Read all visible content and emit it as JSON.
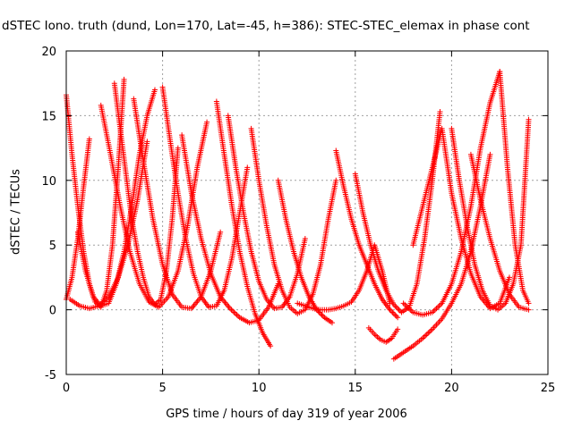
{
  "chart_data": {
    "type": "scatter",
    "title": "dSTEC Iono. truth (dund, Lon=170, Lat=-45, h=386): STEC-STEC_elemax in phase cont",
    "xlabel": "GPS time / hours of day 319 of year 2006",
    "ylabel": "dSTEC  / TECUs",
    "xlim": [
      0,
      25
    ],
    "ylim": [
      -5,
      20
    ],
    "xticks": [
      0,
      5,
      10,
      15,
      20,
      25
    ],
    "yticks": [
      -5,
      0,
      5,
      10,
      15,
      20
    ],
    "grid": true,
    "marker": "+",
    "color": "#ff0000",
    "series": [
      {
        "x": [
          0.0,
          0.3,
          0.6,
          0.9,
          1.2,
          1.5,
          1.8,
          2.1,
          2.4,
          2.7,
          3.0
        ],
        "y": [
          16.6,
          12.0,
          8.0,
          4.5,
          2.0,
          0.6,
          0.2,
          1.5,
          5.0,
          11.0,
          17.8
        ]
      },
      {
        "x": [
          0.0,
          0.3,
          0.6,
          0.9,
          1.2
        ],
        "y": [
          0.8,
          2.5,
          5.5,
          9.5,
          13.2
        ]
      },
      {
        "x": [
          0.6,
          1.0,
          1.4,
          1.8,
          2.2,
          2.6,
          3.0,
          3.4,
          3.8,
          4.2,
          4.6
        ],
        "y": [
          6.0,
          3.0,
          1.0,
          0.3,
          0.5,
          2.0,
          4.5,
          8.0,
          12.0,
          15.0,
          17.0
        ]
      },
      {
        "x": [
          2.5,
          2.8,
          3.1,
          3.4,
          3.7,
          4.0,
          4.3,
          4.6,
          4.9,
          5.2,
          5.5,
          5.8
        ],
        "y": [
          17.5,
          14.0,
          10.5,
          7.0,
          4.5,
          2.5,
          1.0,
          0.4,
          0.8,
          3.0,
          7.0,
          12.5
        ]
      },
      {
        "x": [
          0.2,
          0.7,
          1.2,
          1.7,
          2.2,
          2.7,
          3.2,
          3.7,
          4.2
        ],
        "y": [
          0.8,
          0.3,
          0.1,
          0.3,
          1.0,
          2.5,
          5.0,
          8.5,
          13.0
        ]
      },
      {
        "x": [
          1.8,
          2.3,
          2.8,
          3.3,
          3.8,
          4.3,
          4.8,
          5.3,
          5.8,
          6.3,
          6.8,
          7.3
        ],
        "y": [
          15.8,
          12.0,
          8.0,
          4.5,
          2.0,
          0.6,
          0.2,
          1.0,
          3.0,
          6.5,
          11.0,
          14.5
        ]
      },
      {
        "x": [
          3.5,
          4.0,
          4.5,
          5.0,
          5.5,
          6.0,
          6.5,
          7.0,
          7.5,
          8.0
        ],
        "y": [
          16.3,
          11.5,
          7.0,
          3.5,
          1.2,
          0.2,
          0.1,
          1.0,
          3.0,
          6.0
        ]
      },
      {
        "x": [
          5.0,
          5.4,
          5.8,
          6.2,
          6.6,
          7.0,
          7.4,
          7.8,
          8.2,
          8.6,
          9.0,
          9.4
        ],
        "y": [
          17.2,
          13.0,
          9.0,
          5.5,
          2.8,
          1.0,
          0.2,
          0.3,
          1.5,
          4.0,
          7.5,
          11.0
        ]
      },
      {
        "x": [
          6.0,
          6.5,
          7.0,
          7.5,
          8.0,
          8.5,
          9.0,
          9.5,
          10.0,
          10.5,
          11.0
        ],
        "y": [
          13.5,
          9.0,
          5.5,
          2.8,
          1.0,
          0.1,
          -0.6,
          -1.0,
          -0.8,
          0.2,
          2.0
        ]
      },
      {
        "x": [
          7.8,
          8.2,
          8.6,
          9.0,
          9.4,
          9.8,
          10.2,
          10.6
        ],
        "y": [
          16.1,
          12.0,
          8.0,
          4.5,
          1.8,
          -0.3,
          -1.8,
          -2.8
        ]
      },
      {
        "x": [
          8.4,
          8.8,
          9.2,
          9.6,
          10.0,
          10.4,
          10.8,
          11.2,
          11.6,
          12.0,
          12.4
        ],
        "y": [
          15.0,
          11.0,
          7.5,
          4.5,
          2.2,
          0.8,
          0.1,
          0.2,
          1.0,
          2.8,
          5.5
        ]
      },
      {
        "x": [
          9.6,
          10.0,
          10.4,
          10.8,
          11.2,
          11.6,
          12.0,
          12.4,
          12.8,
          13.2,
          13.6,
          14.0
        ],
        "y": [
          14.0,
          10.0,
          6.5,
          3.5,
          1.5,
          0.2,
          -0.3,
          0.0,
          1.2,
          3.5,
          7.0,
          10.0
        ]
      },
      {
        "x": [
          11.0,
          11.4,
          11.8,
          12.2,
          12.6,
          13.0,
          13.4,
          13.8
        ],
        "y": [
          10.0,
          7.0,
          4.5,
          2.5,
          1.0,
          0.0,
          -0.6,
          -1.0
        ]
      },
      {
        "x": [
          12.0,
          12.4,
          12.8,
          13.2,
          13.6,
          14.0,
          14.4,
          14.8,
          15.2,
          15.6,
          16.0,
          16.4,
          16.8
        ],
        "y": [
          0.5,
          0.3,
          0.1,
          0.0,
          0.0,
          0.1,
          0.3,
          0.6,
          1.5,
          3.0,
          5.0,
          3.0,
          0.5
        ]
      },
      {
        "x": [
          14.0,
          14.4,
          14.8,
          15.2,
          15.6,
          16.0,
          16.4,
          16.8,
          17.2
        ],
        "y": [
          12.3,
          9.5,
          7.0,
          5.0,
          3.5,
          2.0,
          0.8,
          0.0,
          -0.6
        ]
      },
      {
        "x": [
          15.0,
          15.4,
          15.8,
          16.2,
          16.6,
          17.0,
          17.4,
          17.8,
          18.2,
          18.6,
          19.0,
          19.4
        ],
        "y": [
          10.5,
          7.5,
          5.0,
          3.0,
          1.5,
          0.4,
          -0.2,
          0.2,
          2.0,
          5.5,
          10.0,
          15.3
        ]
      },
      {
        "x": [
          15.7,
          16.0,
          16.3,
          16.6,
          16.9,
          17.2
        ],
        "y": [
          -1.4,
          -1.9,
          -2.3,
          -2.5,
          -2.2,
          -1.5
        ]
      },
      {
        "x": [
          17.0,
          17.5,
          18.0,
          18.5,
          19.0,
          19.5,
          20.0,
          20.5,
          21.0,
          21.5,
          22.0
        ],
        "y": [
          -3.8,
          -3.3,
          -2.8,
          -2.2,
          -1.5,
          -0.7,
          0.5,
          2.0,
          4.5,
          8.0,
          12.0
        ]
      },
      {
        "x": [
          17.5,
          18.0,
          18.5,
          19.0,
          19.5,
          20.0,
          20.5,
          21.0,
          21.5,
          22.0,
          22.5
        ],
        "y": [
          0.5,
          -0.2,
          -0.4,
          -0.2,
          0.5,
          2.0,
          4.5,
          8.0,
          12.5,
          16.0,
          18.4
        ]
      },
      {
        "x": [
          18.0,
          18.5,
          19.0,
          19.5,
          20.0,
          20.5,
          21.0,
          21.5,
          22.0,
          22.5,
          23.0
        ],
        "y": [
          5.0,
          8.0,
          11.0,
          14.0,
          9.0,
          5.5,
          2.8,
          1.0,
          0.1,
          0.5,
          2.5
        ]
      },
      {
        "x": [
          20.0,
          20.4,
          20.8,
          21.2,
          21.6,
          22.0,
          22.4,
          22.8,
          23.2,
          23.6,
          24.0
        ],
        "y": [
          14.0,
          10.0,
          6.5,
          3.5,
          1.5,
          0.3,
          0.0,
          0.5,
          2.0,
          5.0,
          14.7
        ]
      },
      {
        "x": [
          21.0,
          21.5,
          22.0,
          22.5,
          23.0,
          23.5,
          24.0
        ],
        "y": [
          12.0,
          8.5,
          5.5,
          3.0,
          1.2,
          0.2,
          0.0
        ]
      },
      {
        "x": [
          22.5,
          22.9,
          23.3,
          23.7,
          24.0
        ],
        "y": [
          18.4,
          11.0,
          5.0,
          1.5,
          0.5
        ]
      }
    ]
  }
}
